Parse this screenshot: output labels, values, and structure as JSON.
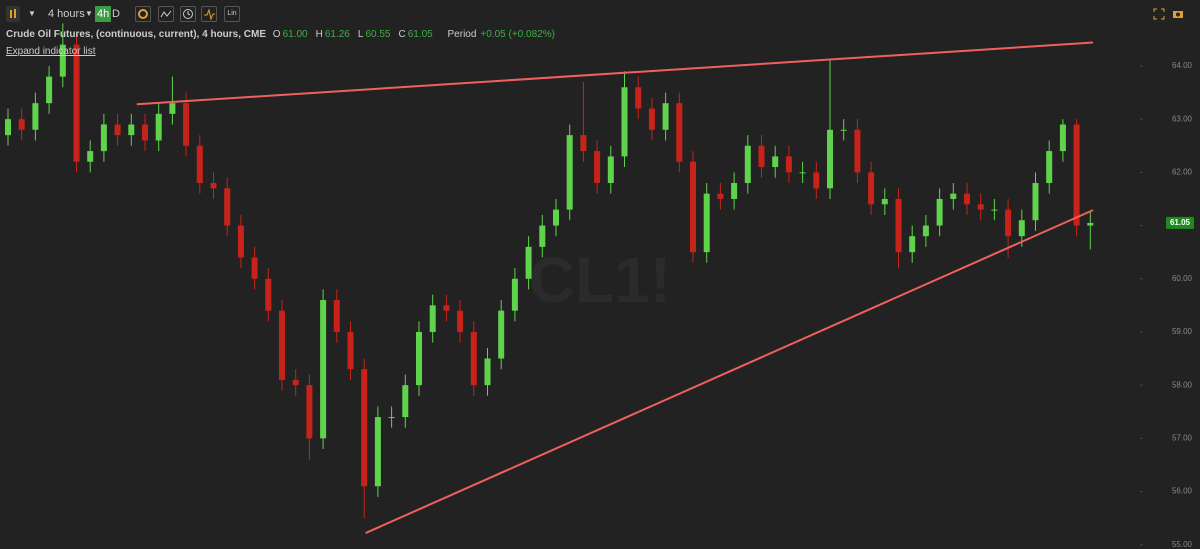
{
  "toolbar": {
    "interval": "4 hours",
    "active": "4h",
    "daily": "D",
    "scale": "Lin"
  },
  "legend": {
    "symbol": "Crude Oil Futures, (continuous, current), 4 hours, CME",
    "ohlc": [
      {
        "key": "O",
        "value": "61.00"
      },
      {
        "key": "H",
        "value": "61.26"
      },
      {
        "key": "L",
        "value": "60.55"
      },
      {
        "key": "C",
        "value": "61.05"
      }
    ],
    "period_label": "Period",
    "period_value": "+0.05 (+0.082%)",
    "expand": "Expand indicator list"
  },
  "chart_data": {
    "type": "candlestick",
    "watermark": "CL1!",
    "up_color": "#5fd34b",
    "down_color": "#c8231b",
    "trend_color": "#f0605e",
    "open": [
      62.7,
      63.0,
      62.8,
      63.3,
      63.8,
      64.4,
      62.2,
      62.4,
      62.9,
      62.7,
      62.9,
      62.6,
      63.1,
      63.3,
      62.5,
      61.8,
      61.7,
      61.0,
      60.4,
      60.0,
      59.4,
      58.1,
      58.0,
      57.0,
      59.6,
      59.0,
      58.3,
      56.1,
      57.4,
      57.4,
      58.0,
      59.0,
      59.5,
      59.4,
      59.0,
      58.0,
      58.5,
      59.4,
      60.0,
      60.6,
      61.0,
      61.3,
      62.7,
      62.4,
      61.8,
      62.3,
      63.6,
      63.2,
      62.8,
      63.3,
      62.2,
      60.5,
      61.6,
      61.5,
      61.8,
      62.5,
      62.1,
      62.3,
      62.0,
      62.0,
      61.7,
      62.8,
      62.8,
      62.0,
      61.4,
      61.5,
      60.5,
      60.8,
      61.0,
      61.5,
      61.6,
      61.4,
      61.3,
      61.3,
      60.8,
      61.1,
      61.8,
      62.4,
      62.9,
      61.0
    ],
    "high": [
      63.2,
      63.2,
      63.5,
      64.0,
      64.8,
      64.6,
      62.6,
      63.1,
      63.1,
      63.1,
      63.1,
      63.3,
      63.8,
      63.5,
      62.7,
      62.0,
      61.9,
      61.2,
      60.6,
      60.2,
      59.6,
      58.3,
      58.2,
      59.8,
      59.8,
      59.2,
      58.5,
      57.6,
      57.6,
      58.2,
      59.2,
      59.7,
      59.7,
      59.6,
      59.2,
      58.7,
      59.6,
      60.2,
      60.8,
      61.2,
      61.5,
      62.9,
      63.7,
      62.6,
      62.5,
      63.9,
      63.8,
      63.4,
      63.5,
      63.5,
      62.4,
      61.8,
      61.8,
      62.0,
      62.7,
      62.7,
      62.5,
      62.5,
      62.2,
      62.2,
      64.1,
      63.0,
      63.0,
      62.2,
      61.7,
      61.7,
      61.0,
      61.2,
      61.7,
      61.8,
      61.8,
      61.6,
      61.5,
      61.5,
      61.3,
      62.0,
      62.6,
      63.0,
      63.0,
      61.26
    ],
    "low": [
      62.5,
      62.6,
      62.6,
      63.1,
      63.6,
      62.0,
      62.0,
      62.2,
      62.5,
      62.5,
      62.4,
      62.4,
      62.9,
      62.3,
      61.6,
      61.5,
      60.8,
      60.2,
      59.8,
      59.2,
      57.9,
      57.8,
      56.6,
      56.8,
      58.8,
      58.1,
      55.5,
      55.9,
      57.2,
      57.2,
      57.8,
      58.8,
      59.2,
      58.8,
      57.8,
      57.8,
      58.3,
      59.2,
      59.8,
      60.4,
      60.8,
      61.1,
      62.2,
      61.6,
      61.6,
      62.1,
      63.0,
      62.6,
      62.6,
      62.0,
      60.3,
      60.3,
      61.3,
      61.3,
      61.6,
      61.9,
      61.9,
      61.8,
      61.8,
      61.5,
      61.5,
      62.6,
      61.8,
      61.2,
      61.2,
      60.2,
      60.3,
      60.6,
      60.8,
      61.3,
      61.2,
      61.1,
      61.1,
      60.4,
      60.6,
      60.9,
      61.6,
      62.2,
      60.8,
      60.55
    ],
    "close": [
      63.0,
      62.8,
      63.3,
      63.8,
      64.4,
      62.2,
      62.4,
      62.9,
      62.7,
      62.9,
      62.6,
      63.1,
      63.3,
      62.5,
      61.8,
      61.7,
      61.0,
      60.4,
      60.0,
      59.4,
      58.1,
      58.0,
      57.0,
      59.6,
      59.0,
      58.3,
      56.1,
      57.4,
      57.4,
      58.0,
      59.0,
      59.5,
      59.4,
      59.0,
      58.0,
      58.5,
      59.4,
      60.0,
      60.6,
      61.0,
      61.3,
      62.7,
      62.4,
      61.8,
      62.3,
      63.6,
      63.2,
      62.8,
      63.3,
      62.2,
      60.5,
      61.6,
      61.5,
      61.8,
      62.5,
      62.1,
      62.3,
      62.0,
      62.0,
      61.7,
      62.8,
      62.8,
      62.0,
      61.4,
      61.5,
      60.5,
      60.8,
      61.0,
      61.5,
      61.6,
      61.4,
      61.3,
      61.3,
      60.8,
      61.1,
      61.8,
      62.4,
      62.9,
      61.0,
      61.05
    ],
    "ylim": [
      54.92,
      65.24
    ],
    "yticks": [
      {
        "value": 55,
        "label": "55.00"
      },
      {
        "value": 56,
        "label": "56.00"
      },
      {
        "value": 57,
        "label": "57.00"
      },
      {
        "value": 58,
        "label": "58.00"
      },
      {
        "value": 59,
        "label": "59.00"
      },
      {
        "value": 60,
        "label": "60.00"
      },
      {
        "value": 61,
        "label": "61.00"
      },
      {
        "value": 62,
        "label": "62.00"
      },
      {
        "value": 63,
        "label": "63.00"
      },
      {
        "value": 64,
        "label": "64.00"
      }
    ],
    "trendlines": [
      {
        "start": [
          9.4,
          63.28
        ],
        "end": [
          79.2,
          64.44
        ]
      },
      {
        "start": [
          26.1,
          55.22
        ],
        "end": [
          79.2,
          61.29
        ]
      }
    ]
  }
}
